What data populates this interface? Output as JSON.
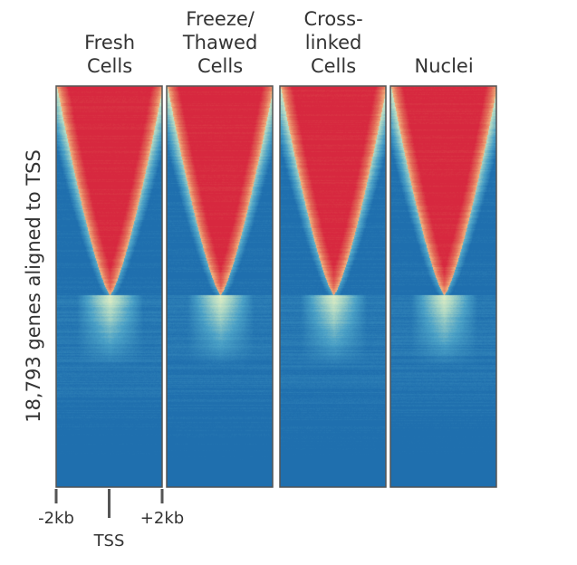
{
  "chart_data": {
    "type": "heatmap",
    "ylabel": "18,793 genes aligned to TSS",
    "x_ticks": [
      {
        "value": -2000,
        "label": "-2kb"
      },
      {
        "value": 0,
        "label": "TSS"
      },
      {
        "value": 2000,
        "label": "+2kb"
      }
    ],
    "xlim": [
      -2000,
      2000
    ],
    "n_genes": 18793,
    "colormap": [
      "#1f6fae",
      "#4aa0c6",
      "#a9d5c4",
      "#f4f7c3",
      "#f6c98a",
      "#e26957",
      "#d7283f"
    ],
    "panels": [
      {
        "title_lines": [
          "Fresh",
          "Cells"
        ]
      },
      {
        "title_lines": [
          "Freeze/",
          "Thawed",
          "Cells"
        ]
      },
      {
        "title_lines": [
          "Cross-",
          "linked",
          "Cells"
        ]
      },
      {
        "title_lines": [
          "Nuclei"
        ]
      }
    ]
  }
}
